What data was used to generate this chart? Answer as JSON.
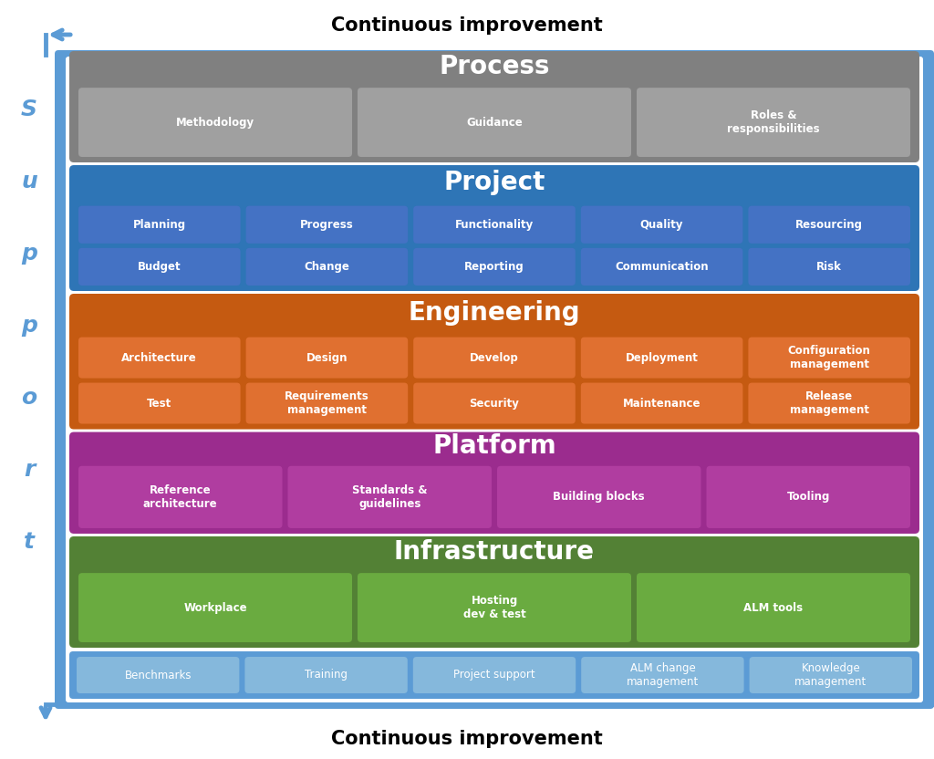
{
  "title_top": "Continuous improvement",
  "title_bottom": "Continuous improvement",
  "support_label": "S\nu\np\np\no\nr\nt",
  "outer_border_color": "#5B9BD5",
  "outer_bg": "#FFFFFF",
  "layers": [
    {
      "name": "Process",
      "bg_color": "#808080",
      "title_color": "#FFFFFF",
      "title_fontsize": 20,
      "items_bg": "#A0A0A0",
      "items_text_color": "#FFFFFF",
      "items": [
        "Methodology",
        "Guidance",
        "Roles &\nresponsibilities"
      ],
      "items_cols": 3
    },
    {
      "name": "Project",
      "bg_color": "#2E75B6",
      "title_color": "#FFFFFF",
      "title_fontsize": 20,
      "items_bg": "#4472C4",
      "items_text_color": "#FFFFFF",
      "items": [
        "Planning",
        "Progress",
        "Functionality",
        "Quality",
        "Resourcing",
        "Budget",
        "Change",
        "Reporting",
        "Communication",
        "Risk"
      ],
      "items_cols": 5
    },
    {
      "name": "Engineering",
      "bg_color": "#C55A11",
      "title_color": "#FFFFFF",
      "title_fontsize": 20,
      "items_bg": "#E07030",
      "items_text_color": "#FFFFFF",
      "items": [
        "Architecture",
        "Design",
        "Develop",
        "Deployment",
        "Configuration\nmanagement",
        "Test",
        "Requirements\nmanagement",
        "Security",
        "Maintenance",
        "Release\nmanagement"
      ],
      "items_cols": 5
    },
    {
      "name": "Platform",
      "bg_color": "#9B2C8E",
      "title_color": "#FFFFFF",
      "title_fontsize": 20,
      "items_bg": "#B03DA0",
      "items_text_color": "#FFFFFF",
      "items": [
        "Reference\narchitecture",
        "Standards &\nguidelines",
        "Building blocks",
        "Tooling"
      ],
      "items_cols": 4
    },
    {
      "name": "Infrastructure",
      "bg_color": "#538135",
      "title_color": "#FFFFFF",
      "title_fontsize": 20,
      "items_bg": "#6AAB40",
      "items_text_color": "#FFFFFF",
      "items": [
        "Workplace",
        "Hosting\ndev & test",
        "ALM tools"
      ],
      "items_cols": 3
    }
  ],
  "bottom_bar_bg": "#5B9BD5",
  "bottom_bar_items": [
    "Benchmarks",
    "Training",
    "Project support",
    "ALM change\nmanagement",
    "Knowledge\nmanagement"
  ],
  "bottom_bar_item_bg": "#85B8DC",
  "bottom_bar_text_color": "#FFFFFF"
}
